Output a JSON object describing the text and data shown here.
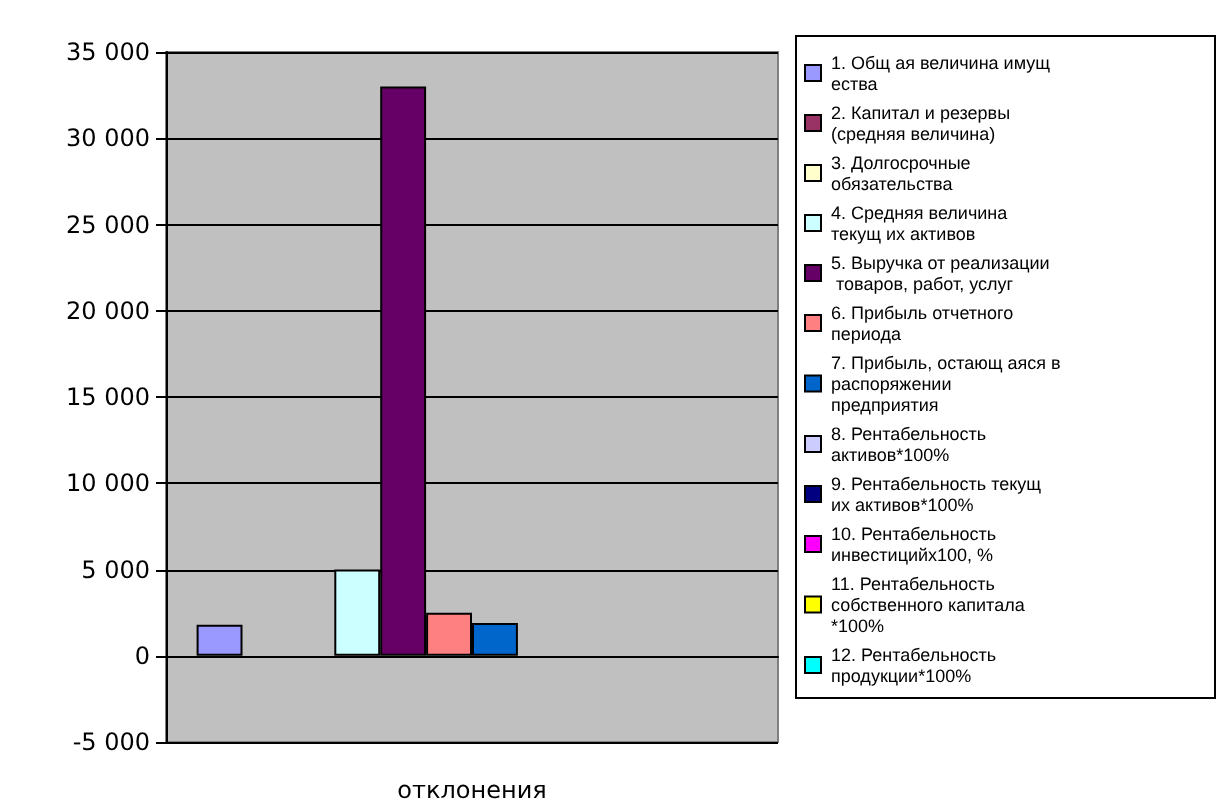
{
  "chart_data": {
    "type": "bar",
    "categories": [
      "отклонения"
    ],
    "series": [
      {
        "name": "1. Общ ая величина имущ ества",
        "color": "#9999ff",
        "values": [
          1800
        ]
      },
      {
        "name": "2. Капитал и резервы (средняя величина)",
        "color": "#993366",
        "values": [
          null
        ]
      },
      {
        "name": "3. Долгосрочные обязательства",
        "color": "#ffffcc",
        "values": [
          null
        ]
      },
      {
        "name": "4. Средняя величина текущ их активов",
        "color": "#ccffff",
        "values": [
          5000
        ]
      },
      {
        "name": "5. Выручка от реализации товаров, работ, услуг",
        "color": "#660066",
        "values": [
          33000
        ]
      },
      {
        "name": "6. Прибыль отчетного периода",
        "color": "#ff8080",
        "values": [
          2500
        ]
      },
      {
        "name": "7. Прибыль, остающ аяся в распоряжении предприятия",
        "color": "#0066cc",
        "values": [
          1900
        ]
      },
      {
        "name": "8. Рентабельность активов*100%",
        "color": "#ccccff",
        "values": [
          null
        ]
      },
      {
        "name": "9. Рентабельность текущ их активов*100%",
        "color": "#000080",
        "values": [
          null
        ]
      },
      {
        "name": "10. Рентабельность инвестицийх100, %",
        "color": "#ff00ff",
        "values": [
          null
        ]
      },
      {
        "name": "11. Рентабельность собственного капитала *100%",
        "color": "#ffff00",
        "values": [
          null
        ]
      },
      {
        "name": "12. Рентабельность продукции*100%",
        "color": "#00ffff",
        "values": [
          null
        ]
      }
    ],
    "ylim": [
      -5000,
      35000
    ],
    "yticks": [
      -5000,
      0,
      5000,
      10000,
      15000,
      20000,
      25000,
      30000,
      35000
    ],
    "grid": "y",
    "legend": "right"
  }
}
